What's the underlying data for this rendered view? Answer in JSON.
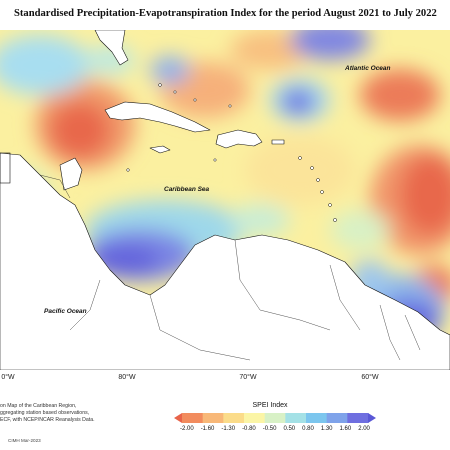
{
  "title": "Standardised Precipitation-Evapotranspiration Index for the period August 2021 to July 2022",
  "labels": {
    "atlantic": "Atlantic Ocean",
    "caribbean": "Caribbean Sea",
    "pacific": "Pacific Ocean"
  },
  "longitudes": [
    "0°W",
    "80°W",
    "70°W",
    "60°W"
  ],
  "credits": [
    "on Map of the Caribbean Region,",
    "ggregating station based observations,",
    "ECF, with NCEP/NCAR Reanalysis Data."
  ],
  "stamp": "CIMH Mar-2023",
  "legend": {
    "title": "SPEI Index",
    "ticks": [
      "-2.00",
      "-1.60",
      "-1.30",
      "-0.80",
      "-0.50",
      "0.50",
      "0.80",
      "1.30",
      "1.60",
      "2.00"
    ],
    "colors": [
      "#e8644a",
      "#f28c5e",
      "#f8b878",
      "#fbdc8a",
      "#fbf5a6",
      "#d8f1c6",
      "#a4e1e6",
      "#7cc6ee",
      "#7fa3ea",
      "#6f6fe0",
      "#5a58d6"
    ]
  }
}
